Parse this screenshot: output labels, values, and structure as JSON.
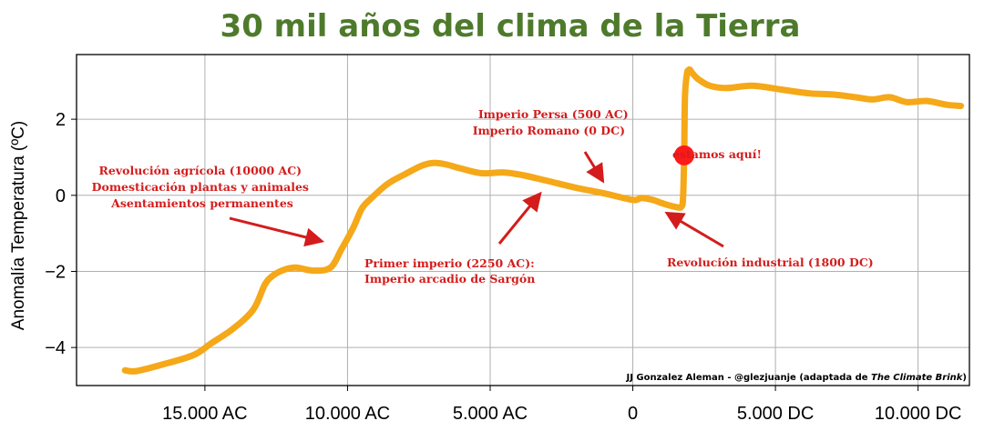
{
  "colors": {
    "title": "#4e7a2c",
    "line": "#f5a818",
    "annotation": "#d41c1c",
    "marker": "#ff1a1a",
    "grid": "#b0b0b0"
  },
  "credit": {
    "text": "JJ Gonzalez Aleman - @glezjuanje (adaptada de ",
    "source": "The Climate Brink",
    "close": ")"
  },
  "chart_data": {
    "type": "line",
    "title": "30 mil años del clima de la Tierra",
    "xlabel": "",
    "ylabel": "Anomalía Temperatura (ºC)",
    "xlim": [
      -19500,
      11800
    ],
    "ylim": [
      -5.0,
      3.7
    ],
    "grid": true,
    "x_ticks": [
      {
        "value": -15000,
        "label": "15.000 AC"
      },
      {
        "value": -10000,
        "label": "10.000 AC"
      },
      {
        "value": -5000,
        "label": "5.000 AC"
      },
      {
        "value": 0,
        "label": "0"
      },
      {
        "value": 5000,
        "label": "5.000 DC"
      },
      {
        "value": 10000,
        "label": "10.000 DC"
      }
    ],
    "y_ticks": [
      {
        "value": 2,
        "label": "2"
      },
      {
        "value": 0,
        "label": "0"
      },
      {
        "value": -2,
        "label": "−2"
      },
      {
        "value": -4,
        "label": "−4"
      }
    ],
    "series": [
      {
        "name": "Anomalía Temperatura",
        "x": [
          -17800,
          -17400,
          -16500,
          -15400,
          -14800,
          -14000,
          -13300,
          -12900,
          -12600,
          -12200,
          -11800,
          -11200,
          -10600,
          -10200,
          -9800,
          -9500,
          -9200,
          -8600,
          -8000,
          -7400,
          -7000,
          -6600,
          -6000,
          -5300,
          -4500,
          -3800,
          -3000,
          -2000,
          -1000,
          0,
          300,
          700,
          1000,
          1300,
          1600,
          1700,
          1760,
          1800,
          1830,
          1900,
          1950,
          2000,
          2100,
          2300,
          2700,
          3300,
          4200,
          5200,
          6200,
          7000,
          7800,
          8400,
          9000,
          9600,
          10300,
          11000,
          11500
        ],
        "y": [
          -4.6,
          -4.62,
          -4.45,
          -4.2,
          -3.9,
          -3.5,
          -3.0,
          -2.35,
          -2.1,
          -1.95,
          -1.9,
          -1.98,
          -1.9,
          -1.4,
          -0.85,
          -0.35,
          -0.1,
          0.3,
          0.55,
          0.78,
          0.85,
          0.82,
          0.7,
          0.58,
          0.6,
          0.52,
          0.38,
          0.2,
          0.05,
          -0.12,
          -0.07,
          -0.12,
          -0.2,
          -0.27,
          -0.32,
          -0.3,
          -0.1,
          1.0,
          2.6,
          3.2,
          3.28,
          3.3,
          3.2,
          3.05,
          2.88,
          2.82,
          2.88,
          2.78,
          2.68,
          2.65,
          2.58,
          2.52,
          2.58,
          2.45,
          2.48,
          2.38,
          2.35
        ]
      }
    ],
    "marker": {
      "x": 1800,
      "y": 1.05,
      "label": "estamos aquí!"
    },
    "annotations": [
      {
        "lines": [
          "Revolución agrícola (10000 AC)",
          "Domesticación plantas y animales",
          "Asentamientos permanentes"
        ]
      },
      {
        "lines": [
          "Primer imperio (2250 AC):",
          "Imperio arcadio de Sargón"
        ]
      },
      {
        "lines": [
          "Imperio Persa (500 AC)",
          "Imperio Romano (0 DC)"
        ]
      },
      {
        "lines": [
          "Revolución industrial (1800 DC)"
        ]
      }
    ]
  }
}
